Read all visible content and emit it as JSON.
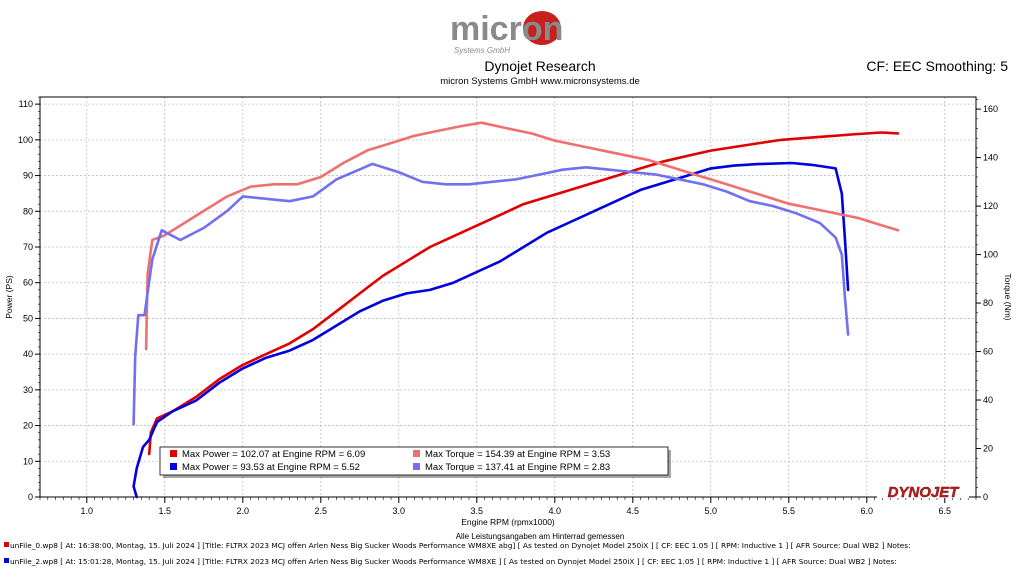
{
  "header": {
    "logo_text": "micron",
    "logo_sub": "Systems GmbH",
    "title": "Dynojet Research",
    "subtitle": "micron Systems GmbH  www.micronsystems.de",
    "cf_smoothing": "CF: EEC Smoothing: 5"
  },
  "brand_watermark": "DYNOJET",
  "footer": {
    "note": "Alle Leistungsangaben am Hinterrad gemessen",
    "run1": "unFile_0.wp8  [ At:  16:38:00, Montag, 15. Juli 2024 ]  [Title:  FLTRX 2023  MCJ offen Arlen Ness Big Sucker Woods Performance WM8XE abg]   [ As tested on Dynojet Model 250iX ]  [ CF: EEC 1.05 ]  [ RPM: Inductive 1 ]  [ AFR Source: Dual WB2 ]  Notes:",
    "run2": "unFile_2.wp8  [ At:  15:01:28, Montag, 15. Juli 2024 ]  [Title:  FLTRX 2023  MCJ offen Arlen Ness Big Sucker Woods Performance WM8XE ]    [ As tested on Dynojet Model 250iX ]  [ CF: EEC 1.05 ]  [ RPM: Inductive 1 ]  [ AFR Source: Dual WB2 ]  Notes:",
    "run1_color": "#e00000",
    "run2_color": "#0000e0"
  },
  "chart_data": {
    "type": "line",
    "xlabel": "Engine RPM (rpmx1000)",
    "ylabel_left": "Power (PS)",
    "ylabel_right": "Torque (Nm)",
    "xlim": [
      0.7,
      6.7
    ],
    "ylim_left": [
      0,
      112
    ],
    "ylim_right": [
      0,
      165
    ],
    "x_ticks": [
      1.0,
      1.5,
      2.0,
      2.5,
      3.0,
      3.5,
      4.0,
      4.5,
      5.0,
      5.5,
      6.0,
      6.5
    ],
    "x_tick_labels": [
      "1.0",
      "1.5",
      "2.0",
      "2.5",
      "3.0",
      "3.5",
      "4.0",
      "4.5",
      "5.0",
      "5.5",
      "6.0",
      "6.5"
    ],
    "y_left_ticks": [
      0,
      10,
      20,
      30,
      40,
      50,
      60,
      70,
      80,
      90,
      100,
      110
    ],
    "y_right_ticks": [
      0,
      20,
      40,
      60,
      80,
      100,
      120,
      140,
      160
    ],
    "grid": true,
    "legend": {
      "position": "bottom-center",
      "entries": [
        {
          "text": "Max Power = 102.07 at Engine RPM = 6.09",
          "color": "#e00000"
        },
        {
          "text": "Max Torque = 154.39 at Engine RPM = 3.53",
          "color": "#f07070"
        },
        {
          "text": "Max Power = 93.53 at Engine RPM = 5.52",
          "color": "#0000e0"
        },
        {
          "text": "Max Torque = 137.41 at Engine RPM = 2.83",
          "color": "#7070f0"
        }
      ]
    },
    "series": [
      {
        "axis": "left",
        "color": "#e00000",
        "points": [
          [
            1.4,
            12
          ],
          [
            1.41,
            18
          ],
          [
            1.45,
            22
          ],
          [
            1.55,
            24
          ],
          [
            1.7,
            28
          ],
          [
            1.85,
            33
          ],
          [
            2.0,
            37
          ],
          [
            2.15,
            40
          ],
          [
            2.3,
            43
          ],
          [
            2.45,
            47
          ],
          [
            2.6,
            52
          ],
          [
            2.75,
            57
          ],
          [
            2.9,
            62
          ],
          [
            3.05,
            66
          ],
          [
            3.2,
            70
          ],
          [
            3.35,
            73
          ],
          [
            3.5,
            76
          ],
          [
            3.65,
            79
          ],
          [
            3.8,
            82
          ],
          [
            3.95,
            84
          ],
          [
            4.1,
            86
          ],
          [
            4.25,
            88
          ],
          [
            4.4,
            90
          ],
          [
            4.55,
            92
          ],
          [
            4.7,
            94
          ],
          [
            4.85,
            95.5
          ],
          [
            5.0,
            97
          ],
          [
            5.15,
            98
          ],
          [
            5.3,
            99
          ],
          [
            5.45,
            100
          ],
          [
            5.6,
            100.5
          ],
          [
            5.75,
            101
          ],
          [
            5.9,
            101.5
          ],
          [
            6.09,
            102.07
          ],
          [
            6.2,
            101.8
          ]
        ]
      },
      {
        "axis": "left",
        "color": "#0000e0",
        "points": [
          [
            1.32,
            0
          ],
          [
            1.3,
            3
          ],
          [
            1.32,
            8
          ],
          [
            1.36,
            14
          ],
          [
            1.4,
            16
          ],
          [
            1.45,
            21
          ],
          [
            1.55,
            24
          ],
          [
            1.7,
            27
          ],
          [
            1.85,
            32
          ],
          [
            2.0,
            36
          ],
          [
            2.15,
            39
          ],
          [
            2.3,
            41
          ],
          [
            2.45,
            44
          ],
          [
            2.6,
            48
          ],
          [
            2.75,
            52
          ],
          [
            2.9,
            55
          ],
          [
            3.05,
            57
          ],
          [
            3.2,
            58
          ],
          [
            3.35,
            60
          ],
          [
            3.5,
            63
          ],
          [
            3.65,
            66
          ],
          [
            3.8,
            70
          ],
          [
            3.95,
            74
          ],
          [
            4.1,
            77
          ],
          [
            4.25,
            80
          ],
          [
            4.4,
            83
          ],
          [
            4.55,
            86
          ],
          [
            4.7,
            88
          ],
          [
            4.85,
            90
          ],
          [
            5.0,
            92
          ],
          [
            5.15,
            92.8
          ],
          [
            5.3,
            93.2
          ],
          [
            5.52,
            93.53
          ],
          [
            5.65,
            93
          ],
          [
            5.8,
            92
          ],
          [
            5.84,
            85
          ],
          [
            5.86,
            72
          ],
          [
            5.88,
            58
          ]
        ]
      },
      {
        "axis": "right",
        "color": "#f07070",
        "points": [
          [
            1.38,
            61
          ],
          [
            1.39,
            92
          ],
          [
            1.42,
            106
          ],
          [
            1.5,
            108
          ],
          [
            1.6,
            112
          ],
          [
            1.75,
            118
          ],
          [
            1.9,
            124
          ],
          [
            2.05,
            128
          ],
          [
            2.2,
            129
          ],
          [
            2.35,
            129
          ],
          [
            2.5,
            132
          ],
          [
            2.65,
            138
          ],
          [
            2.8,
            143
          ],
          [
            2.95,
            146
          ],
          [
            3.1,
            149
          ],
          [
            3.25,
            151
          ],
          [
            3.4,
            153
          ],
          [
            3.53,
            154.39
          ],
          [
            3.7,
            152
          ],
          [
            3.85,
            150
          ],
          [
            4.0,
            147
          ],
          [
            4.15,
            145
          ],
          [
            4.3,
            143
          ],
          [
            4.45,
            141
          ],
          [
            4.6,
            139
          ],
          [
            4.75,
            136
          ],
          [
            4.9,
            133
          ],
          [
            5.05,
            130
          ],
          [
            5.2,
            127
          ],
          [
            5.35,
            124
          ],
          [
            5.5,
            121
          ],
          [
            5.65,
            119
          ],
          [
            5.8,
            117
          ],
          [
            5.95,
            115
          ],
          [
            6.1,
            112
          ],
          [
            6.2,
            110
          ]
        ]
      },
      {
        "axis": "right",
        "color": "#7070f0",
        "points": [
          [
            1.3,
            30
          ],
          [
            1.31,
            58
          ],
          [
            1.33,
            75
          ],
          [
            1.37,
            75
          ],
          [
            1.42,
            98
          ],
          [
            1.48,
            110
          ],
          [
            1.6,
            106
          ],
          [
            1.75,
            111
          ],
          [
            1.9,
            118
          ],
          [
            2.0,
            124
          ],
          [
            2.15,
            123
          ],
          [
            2.3,
            122
          ],
          [
            2.45,
            124
          ],
          [
            2.6,
            131
          ],
          [
            2.83,
            137.41
          ],
          [
            3.0,
            134
          ],
          [
            3.15,
            130
          ],
          [
            3.3,
            129
          ],
          [
            3.45,
            129
          ],
          [
            3.6,
            130
          ],
          [
            3.75,
            131
          ],
          [
            3.9,
            133
          ],
          [
            4.05,
            135
          ],
          [
            4.2,
            136
          ],
          [
            4.35,
            135
          ],
          [
            4.5,
            134
          ],
          [
            4.65,
            133
          ],
          [
            4.8,
            131
          ],
          [
            4.95,
            129
          ],
          [
            5.1,
            126
          ],
          [
            5.25,
            122
          ],
          [
            5.4,
            120
          ],
          [
            5.55,
            117
          ],
          [
            5.7,
            113
          ],
          [
            5.8,
            107
          ],
          [
            5.84,
            100
          ],
          [
            5.86,
            82
          ],
          [
            5.88,
            67
          ]
        ]
      }
    ]
  }
}
